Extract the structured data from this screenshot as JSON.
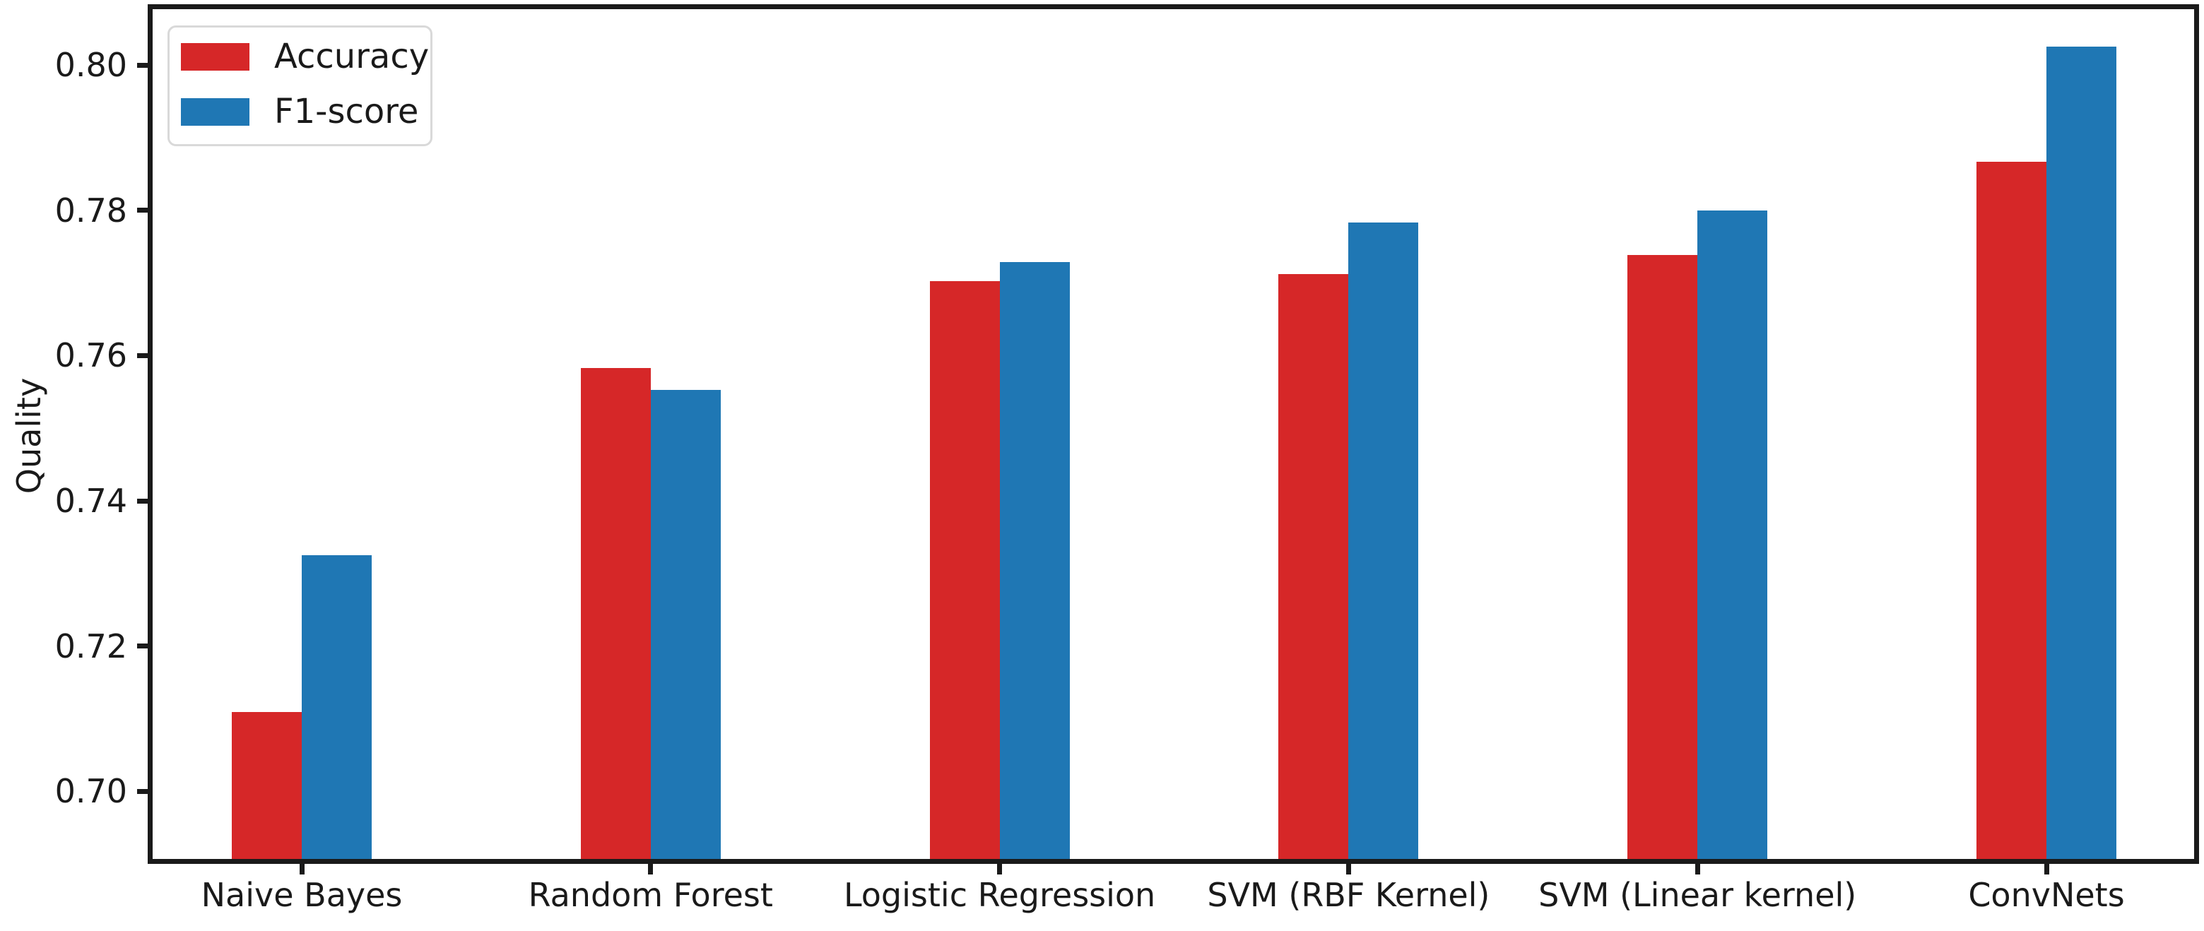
{
  "chart_data": {
    "type": "bar",
    "title": "",
    "xlabel": "",
    "ylabel": "Quality",
    "categories": [
      "Naive Bayes",
      "Random Forest",
      "Logistic Regression",
      "SVM (RBF Kernel)",
      "SVM (Linear kernel)",
      "ConvNets"
    ],
    "series": [
      {
        "name": "Accuracy",
        "color": "#d62728",
        "values": [
          0.7109,
          0.7583,
          0.7703,
          0.7712,
          0.7739,
          0.7867
        ]
      },
      {
        "name": "F1-score",
        "color": "#1f77b4",
        "values": [
          0.7325,
          0.7553,
          0.7729,
          0.7783,
          0.78,
          0.8025
        ]
      }
    ],
    "yticks": [
      0.7,
      0.72,
      0.74,
      0.76,
      0.78,
      0.8
    ],
    "ytick_labels": [
      "0.70",
      "0.72",
      "0.74",
      "0.76",
      "0.78",
      "0.80"
    ],
    "ylim": [
      0.6907,
      0.8077
    ],
    "grid": false,
    "legend_position": "upper left",
    "legend": {
      "items": [
        {
          "label": "Accuracy",
          "color": "#d62728"
        },
        {
          "label": "F1-score",
          "color": "#1f77b4"
        }
      ]
    }
  }
}
